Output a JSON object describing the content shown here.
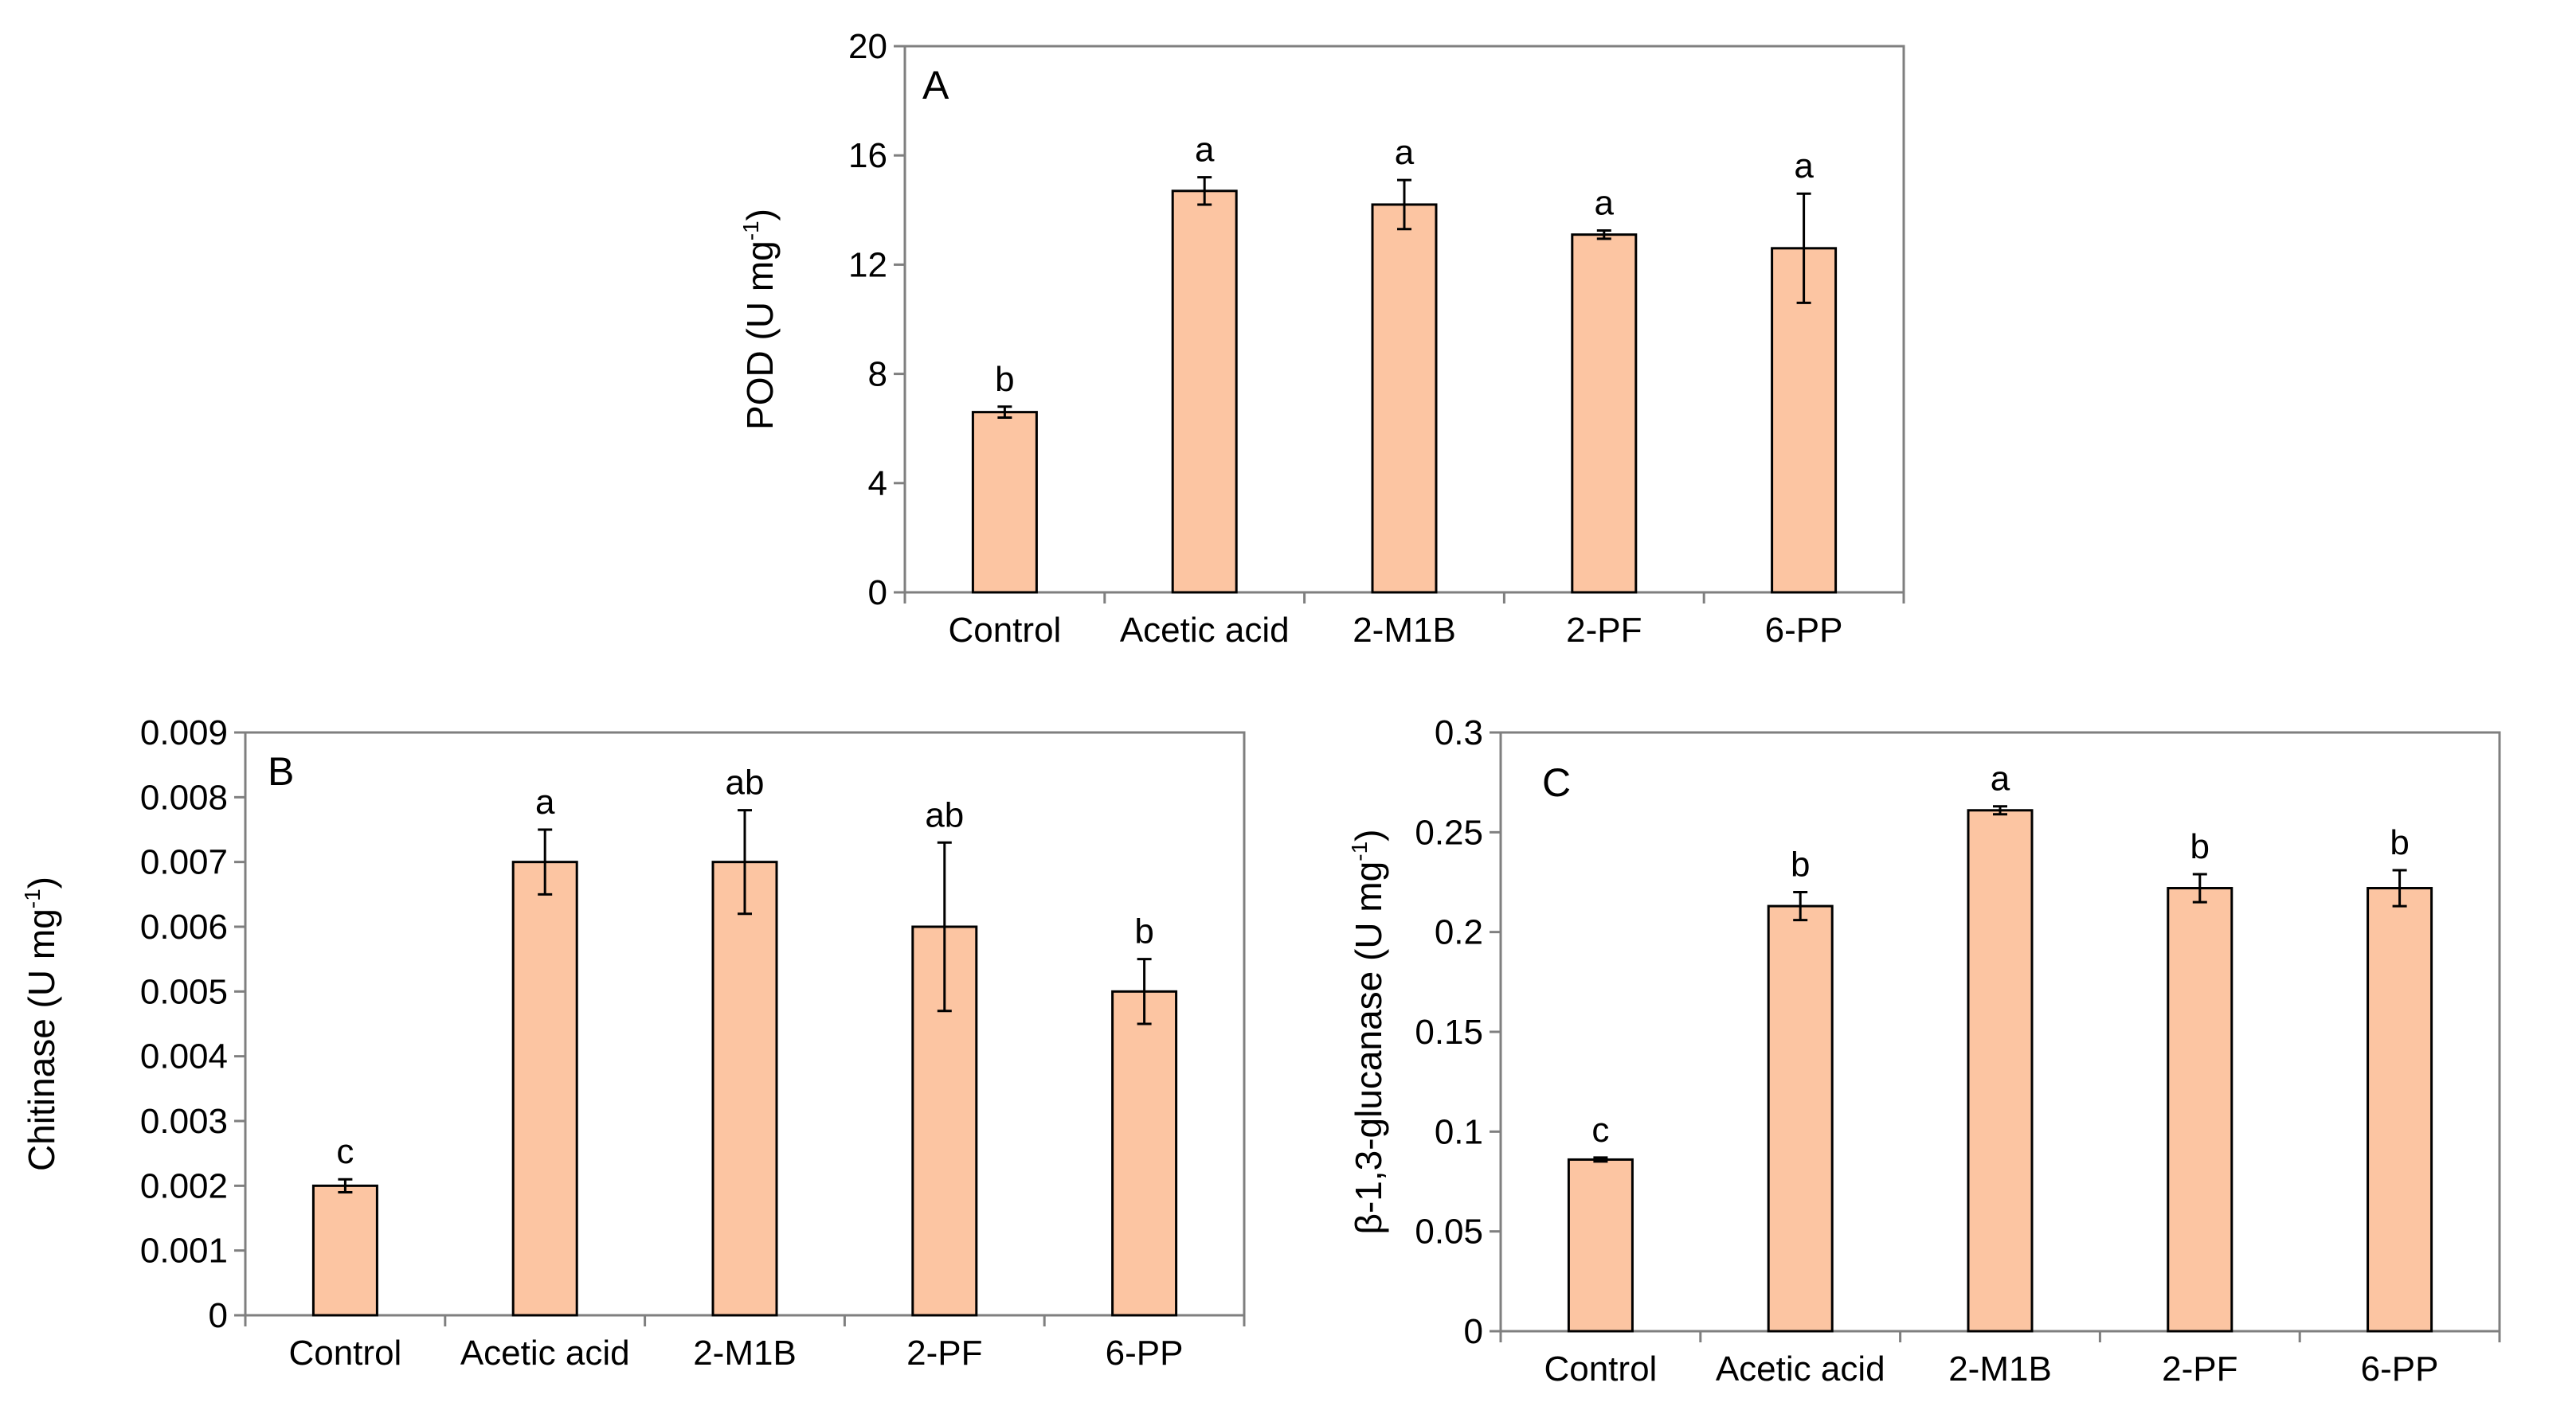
{
  "colors": {
    "bar": "#fcc5a2",
    "stroke": "#000000",
    "axis": "#7f7f7f"
  },
  "chart_data": [
    {
      "id": "A",
      "type": "bar",
      "panel_label": "A",
      "ylabel_main": "POD (U mg",
      "ylabel_sup": "-1",
      "ylabel_close": ")",
      "categories": [
        "Control",
        "Acetic acid",
        "2-M1B",
        "2-PF",
        "6-PP"
      ],
      "values": [
        6.6,
        14.7,
        14.2,
        13.1,
        12.6
      ],
      "errors": [
        0.2,
        0.5,
        0.9,
        0.15,
        2.0
      ],
      "significance": [
        "b",
        "a",
        "a",
        "a",
        "a"
      ],
      "ylim": [
        0,
        20
      ],
      "yticks": [
        0,
        4,
        8,
        12,
        16,
        20
      ],
      "ytick_labels": [
        "0",
        "4",
        "8",
        "12",
        "16",
        "20"
      ]
    },
    {
      "id": "B",
      "type": "bar",
      "panel_label": "B",
      "ylabel_main": "Chitinase (U mg",
      "ylabel_sup": "-1",
      "ylabel_close": ")",
      "categories": [
        "Control",
        "Acetic acid",
        "2-M1B",
        "2-PF",
        "6-PP"
      ],
      "values": [
        0.002,
        0.007,
        0.007,
        0.006,
        0.005
      ],
      "errors": [
        0.0001,
        0.0005,
        0.0008,
        0.0013,
        0.0005
      ],
      "significance": [
        "c",
        "a",
        "ab",
        "ab",
        "b"
      ],
      "ylim": [
        0,
        0.009
      ],
      "yticks": [
        0,
        0.001,
        0.002,
        0.003,
        0.004,
        0.005,
        0.006,
        0.007,
        0.008,
        0.009
      ],
      "ytick_labels": [
        "0",
        "0.001",
        "0.002",
        "0.003",
        "0.004",
        "0.005",
        "0.006",
        "0.007",
        "0.008",
        "0.009"
      ]
    },
    {
      "id": "C",
      "type": "bar",
      "panel_label": "C",
      "ylabel_main": "β-1,3-glucanase (U mg",
      "ylabel_sup": "-1",
      "ylabel_close": ")",
      "categories": [
        "Control",
        "Acetic acid",
        "2-M1B",
        "2-PF",
        "6-PP"
      ],
      "values": [
        0.086,
        0.213,
        0.261,
        0.222,
        0.222
      ],
      "errors": [
        0.001,
        0.007,
        0.002,
        0.007,
        0.009
      ],
      "significance": [
        "c",
        "b",
        "a",
        "b",
        "b"
      ],
      "ylim": [
        0,
        0.3
      ],
      "yticks": [
        0,
        0.05,
        0.1,
        0.15,
        0.2,
        0.25,
        0.3
      ],
      "ytick_labels": [
        "0",
        "0.05",
        "0.1",
        "0.15",
        "0.2",
        "0.25",
        "0.3"
      ]
    }
  ]
}
